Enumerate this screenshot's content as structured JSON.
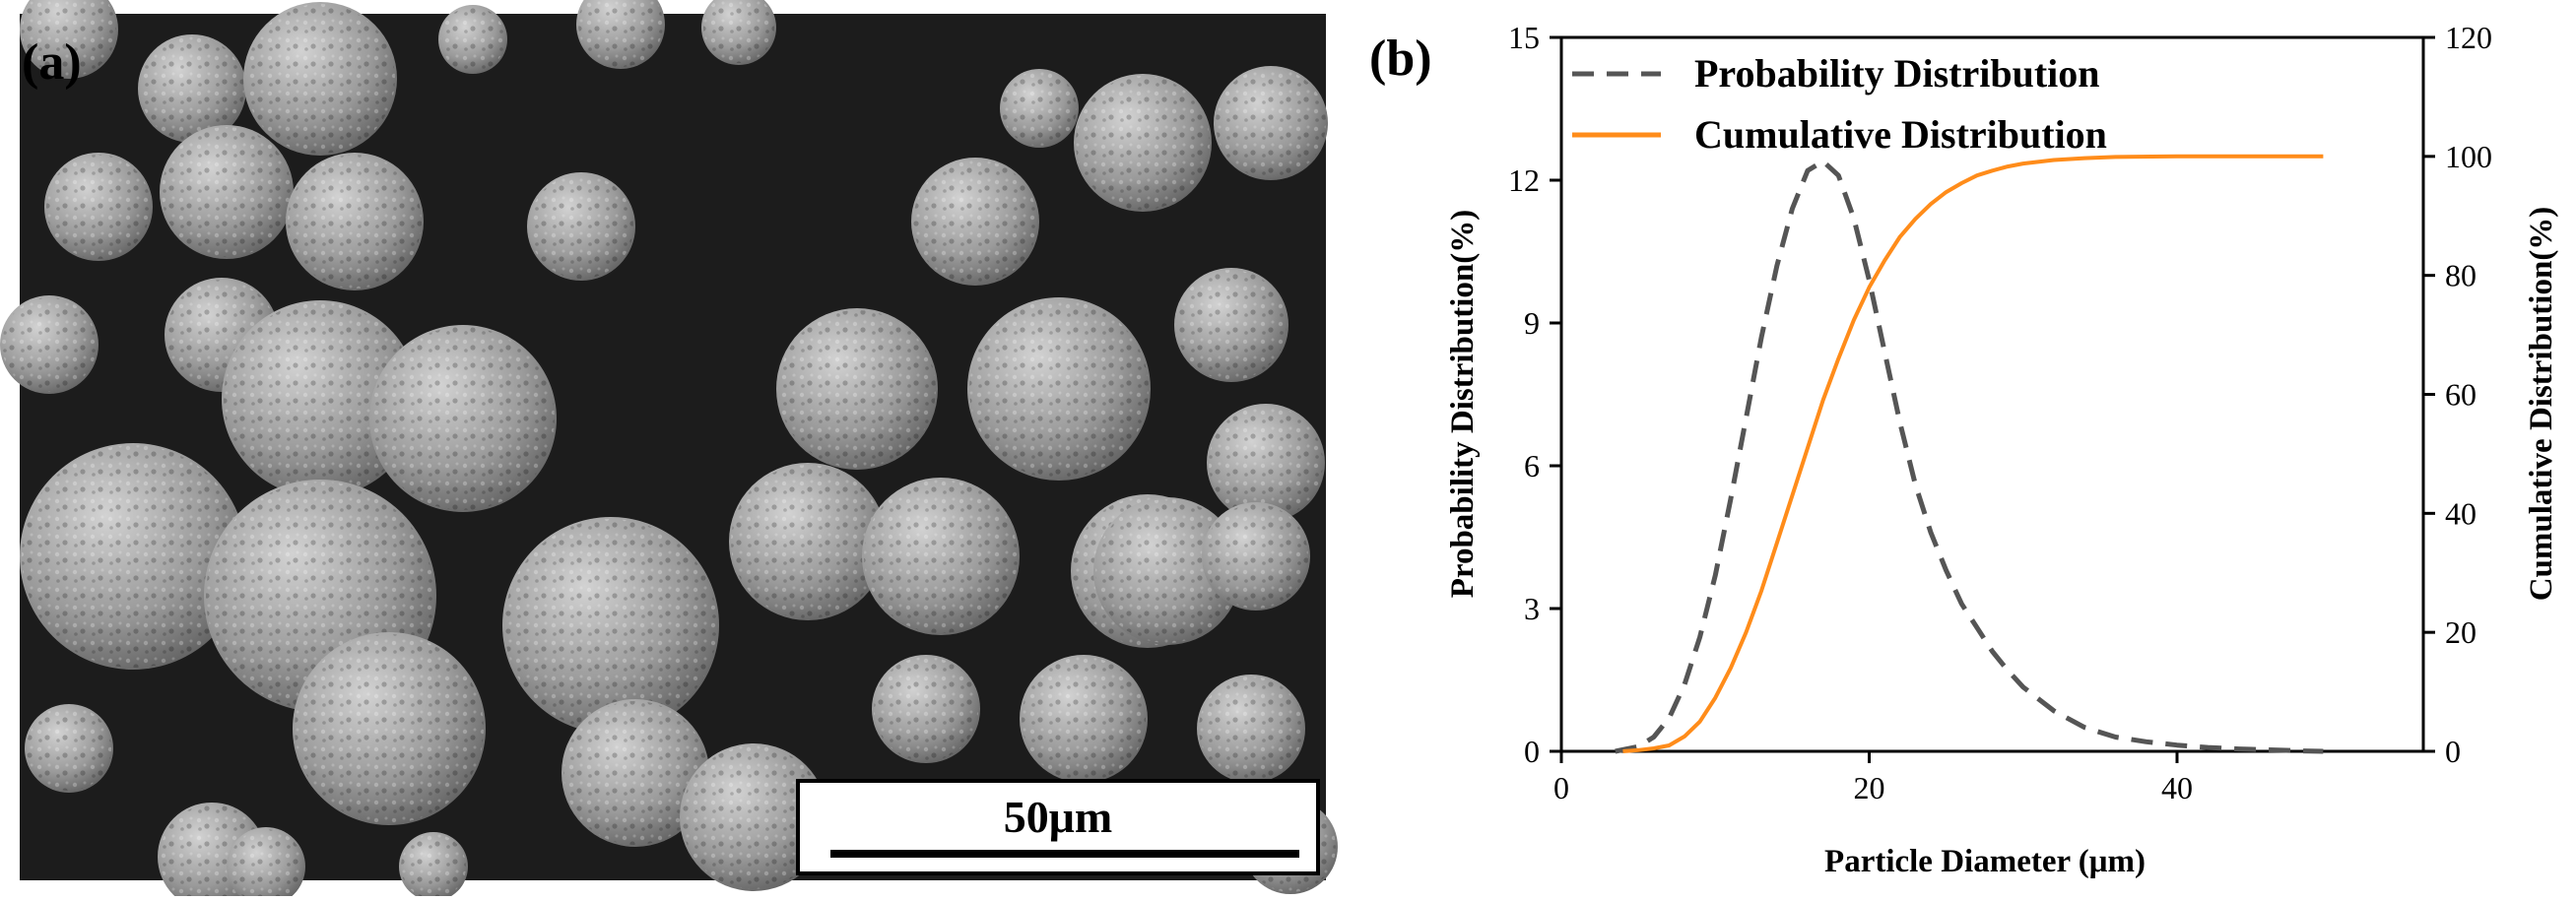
{
  "panel_a": {
    "label": "(a)",
    "scale_bar_text": "50μm"
  },
  "panel_b": {
    "label": "(b)"
  },
  "colors": {
    "probability": "#555555",
    "cumulative": "#FF8C1A",
    "sem_background": "#1c1c1c",
    "particle": "#9d9d9d"
  },
  "chart_data": {
    "type": "line",
    "title": "",
    "xlabel": "Particle Diameter (μm)",
    "ylabel": "Probability Distribution(%)",
    "y2label": "Cumulative Distribution(%)",
    "xlim": [
      0,
      56
    ],
    "ylim": [
      0,
      15
    ],
    "y2lim": [
      0,
      120
    ],
    "xticks": [
      "0",
      "20",
      "40"
    ],
    "yticks": [
      "0",
      "3",
      "6",
      "9",
      "12",
      "15"
    ],
    "y2ticks": [
      "0",
      "20",
      "40",
      "60",
      "80",
      "100",
      "120"
    ],
    "legend_position": "top-left",
    "series": [
      {
        "name": "Probability Distribution",
        "axis": "left",
        "style": "dashed",
        "x": [
          3.5,
          5,
          6,
          7,
          8,
          9,
          10,
          11,
          12,
          13,
          14,
          15,
          16,
          17,
          18,
          19,
          20,
          21,
          22,
          23,
          24,
          25,
          26,
          27,
          28,
          29,
          30,
          32,
          34,
          36,
          38,
          40,
          42,
          44,
          46,
          48,
          49.5
        ],
        "y": [
          0,
          0.1,
          0.3,
          0.7,
          1.4,
          2.4,
          3.7,
          5.3,
          7.0,
          8.7,
          10.2,
          11.4,
          12.2,
          12.4,
          12.1,
          11.2,
          9.9,
          8.4,
          6.9,
          5.6,
          4.6,
          3.8,
          3.1,
          2.6,
          2.1,
          1.7,
          1.35,
          0.85,
          0.5,
          0.3,
          0.2,
          0.13,
          0.08,
          0.05,
          0.03,
          0.01,
          0
        ]
      },
      {
        "name": "Cumulative Distribution",
        "axis": "right",
        "style": "solid",
        "x": [
          4,
          5,
          6,
          7,
          8,
          9,
          10,
          11,
          12,
          13,
          14,
          15,
          16,
          17,
          18,
          19,
          20,
          21,
          22,
          23,
          24,
          25,
          26,
          27,
          28,
          29,
          30,
          32,
          34,
          36,
          40,
          44,
          49.5
        ],
        "y": [
          0,
          0.2,
          0.5,
          1.0,
          2.5,
          5.0,
          9.0,
          14.0,
          20.0,
          27.0,
          35.0,
          43.0,
          51.0,
          59.0,
          66.0,
          72.5,
          78.0,
          82.5,
          86.5,
          89.5,
          92.0,
          94.0,
          95.5,
          96.8,
          97.6,
          98.3,
          98.8,
          99.4,
          99.7,
          99.9,
          100.0,
          100.0,
          100.0
        ]
      }
    ]
  }
}
